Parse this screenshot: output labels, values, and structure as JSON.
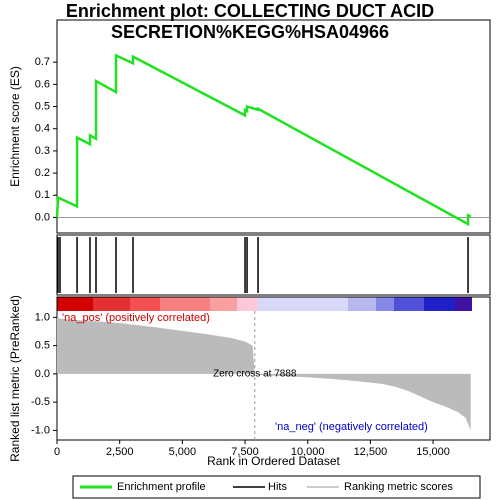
{
  "chart_data": [
    {
      "type": "line",
      "title_lines": [
        "Enrichment plot: COLLECTING DUCT ACID",
        "SECRETION%KEGG%HSA04966"
      ],
      "y_label": "Enrichment score (ES)",
      "xlim": [
        0,
        17270
      ],
      "ylim": [
        -0.07,
        0.89
      ],
      "yticks": [
        {
          "value": 0,
          "label": "0.0"
        },
        0.1,
        0.2,
        0.3,
        0.4,
        0.5,
        0.6,
        0.7
      ],
      "series": [
        {
          "name": "Enrichment profile",
          "color": "#22e022",
          "x": [
            0,
            40,
            800,
            800,
            1316,
            1316,
            1556,
            1556,
            2353,
            2353,
            3031,
            3031,
            7500,
            7500,
            7580,
            7580,
            8018,
            8018,
            16394,
            16394,
            16500
          ],
          "values": [
            0,
            0.09,
            0.05,
            0.36,
            0.33,
            0.37,
            0.355,
            0.615,
            0.565,
            0.73,
            0.695,
            0.725,
            0.46,
            0.485,
            0.48,
            0.5,
            0.485,
            0.49,
            -0.03,
            0.01,
            0.005
          ]
        }
      ]
    },
    {
      "type": "hits",
      "xlim": [
        0,
        17270
      ],
      "series": [
        {
          "name": "Hits",
          "color": "#000000",
          "x": [
            40,
            120,
            800,
            1316,
            1556,
            2353,
            3031,
            7500,
            7580,
            8018,
            16394
          ]
        }
      ]
    },
    {
      "type": "area",
      "y_label": "Ranked list metric (PreRanked)",
      "x_label": "Rank in Ordered Dataset",
      "xlim": [
        0,
        17270
      ],
      "ylim": [
        -1.17,
        1.36
      ],
      "xticks": [
        0,
        {
          "value": 2500,
          "label": "2,500"
        },
        {
          "value": 5000,
          "label": "5,000"
        },
        {
          "value": 7500,
          "label": "7,500"
        },
        {
          "value": 10000,
          "label": "10,000"
        },
        {
          "value": 12500,
          "label": "12,500"
        },
        {
          "value": 15000,
          "label": "15,000"
        }
      ],
      "yticks": [
        {
          "value": 1,
          "label": "1.0"
        },
        0.5,
        {
          "value": 0,
          "label": "0.0"
        },
        -0.5,
        {
          "value": -1,
          "label": "-1.0"
        }
      ],
      "zero_cross": 7888,
      "annotations": [
        "'na_pos' (positively correlated)",
        "Zero cross at 7888",
        "'na_neg' (negatively correlated)"
      ],
      "series": [
        {
          "name": "Ranking metric scores",
          "color": "#bbbbbb",
          "x": [
            0,
            100,
            500,
            1500,
            2500,
            4000,
            5000,
            6000,
            7000,
            7500,
            7800,
            7888,
            8000,
            9000,
            10000,
            11000,
            12000,
            13000,
            13500,
            14000,
            14500,
            15000,
            15500,
            16000,
            16300,
            16500
          ],
          "values": [
            1.0,
            0.98,
            0.96,
            0.93,
            0.9,
            0.82,
            0.76,
            0.7,
            0.63,
            0.57,
            0.5,
            0,
            -0.02,
            -0.04,
            -0.06,
            -0.09,
            -0.13,
            -0.18,
            -0.23,
            -0.3,
            -0.4,
            -0.5,
            -0.58,
            -0.68,
            -0.78,
            -1.0
          ]
        }
      ]
    }
  ]
}
